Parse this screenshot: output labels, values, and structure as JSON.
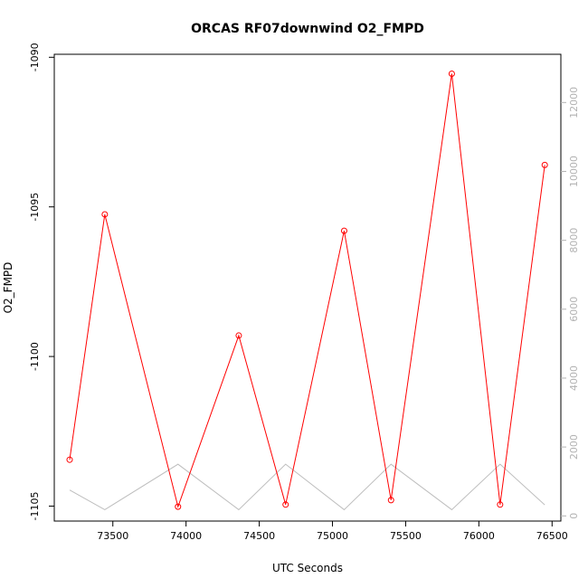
{
  "chart_data": {
    "type": "line",
    "title": "ORCAS RF07downwind O2_FMPD",
    "xlabel": "UTC Seconds",
    "ylabel": "O2_FMPD",
    "xlim": [
      73100,
      76560
    ],
    "ylim": [
      -1105.5,
      -1089.9
    ],
    "y2lim": [
      -150,
      13400
    ],
    "x_ticks": [
      73500,
      74000,
      74500,
      75000,
      75500,
      76000,
      76500
    ],
    "y_ticks": [
      -1105,
      -1100,
      -1095,
      -1090
    ],
    "y2_ticks": [
      0,
      2000,
      4000,
      6000,
      8000,
      10000,
      12000
    ],
    "series": [
      {
        "color": "#ff0000",
        "axis": "left",
        "markers": "open-circle",
        "x": [
          73205,
          73445,
          73945,
          74360,
          74680,
          75080,
          75400,
          75815,
          76145,
          76450
        ],
        "y": [
          -1103.45,
          -1095.25,
          -1105.02,
          -1099.3,
          -1104.95,
          -1095.8,
          -1104.8,
          -1090.55,
          -1104.95,
          -1093.6
        ]
      },
      {
        "color": "#bebebe",
        "axis": "right",
        "markers": "none",
        "x": [
          73205,
          73445,
          73945,
          74360,
          74680,
          75080,
          75400,
          75815,
          76145,
          76450
        ],
        "y": [
          750,
          180,
          1500,
          180,
          1500,
          180,
          1500,
          180,
          1500,
          320
        ]
      }
    ]
  }
}
